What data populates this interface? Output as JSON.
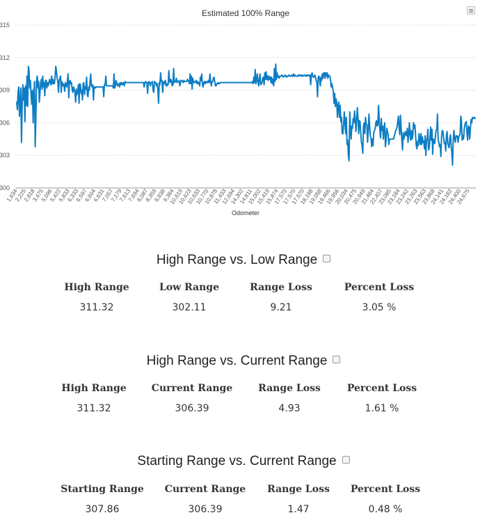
{
  "chart_data": {
    "type": "line",
    "title": "Estimated 100% Range",
    "xlabel": "Odometer",
    "ylabel": "",
    "ylim": [
      300,
      315
    ],
    "yticks": [
      300,
      303,
      306,
      309,
      312,
      315
    ],
    "xticks": [
      "1,634",
      "2,225",
      "2,818",
      "3,475",
      "5,096",
      "5,422",
      "5,833",
      "6,333",
      "6,597",
      "6,604",
      "6,631",
      "7,057",
      "7,179",
      "7,613",
      "7,694",
      "8,087",
      "8,359",
      "8,838",
      "9,384",
      "10,619",
      "10,623",
      "10,633",
      "10,770",
      "10,878",
      "11,433",
      "12,694",
      "14,302",
      "14,811",
      "15,002",
      "15,419",
      "15,874",
      "17,570",
      "17,570",
      "17,570",
      "18,188",
      "19,058",
      "19,466",
      "19,956",
      "20,034",
      "20,475",
      "20,949",
      "21,484",
      "22,407",
      "23,085",
      "23,184",
      "23,242",
      "23,263",
      "23,563",
      "23,868",
      "24,141",
      "24,182",
      "24,400",
      "24,675"
    ],
    "grid": true,
    "series": [
      {
        "color": "#0d7dc4",
        "values": [
          307.9,
          307.2,
          308.8,
          309.3,
          306.6,
          307.8,
          309.2,
          304.2,
          307.6,
          309.5,
          308.1,
          309.2,
          306.1,
          309.4,
          307.6,
          310.3,
          307.5,
          311.2,
          310.8,
          309.2,
          309.9,
          308.5,
          307.7,
          309.0,
          306.0,
          308.6,
          309.8,
          303.8,
          306.5,
          309.9,
          310.3,
          309.2,
          309.8,
          307.9,
          308.8,
          309.7,
          310.0,
          309.1,
          310.3,
          309.3,
          309.7,
          308.5,
          309.9,
          309.9,
          309.2,
          309.7,
          309.4,
          309.7,
          310.0,
          309.7,
          309.5,
          310.3,
          309.6,
          310.0,
          309.6,
          309.6,
          310.2,
          311.2,
          310.8,
          310.1,
          309.8,
          308.8,
          309.9,
          310.1,
          310.3,
          308.8,
          309.8,
          309.4,
          309.6,
          309.5,
          308.9,
          309.7,
          309.4,
          309.3,
          309.9,
          310.5,
          308.3,
          309.8,
          309.9,
          309.6,
          309.7,
          309.0,
          308.8,
          309.3,
          309.1,
          308.8,
          307.9,
          309.1,
          308.6,
          308.9,
          309.5,
          307.8,
          309.6,
          309.5,
          308.7,
          309.0,
          308.1,
          309.6,
          309.7,
          308.6,
          309.3,
          309.1,
          310.2,
          308.6,
          308.4,
          309.3,
          309.0,
          309.8,
          310.5,
          309.4,
          309.3,
          309.5,
          308.1,
          309.3,
          309.3,
          309.2,
          309.3,
          309.3,
          309.3,
          309.3,
          309.3,
          309.3,
          309.3,
          309.3,
          309.3,
          309.3,
          309.3,
          308.4,
          309.5,
          309.5,
          310.3,
          309.4,
          309.4,
          309.4,
          309.4,
          309.4,
          309.4,
          309.4,
          309.4,
          309.4,
          309.4,
          309.2,
          310.5,
          309.2,
          309.4,
          309.9,
          309.7,
          309.4,
          309.5,
          309.6,
          309.3,
          309.7,
          309.5,
          309.7,
          309.5,
          309.6,
          309.7,
          309.4,
          309.8,
          309.7,
          309.7,
          309.7,
          309.7,
          309.7,
          309.7,
          309.7,
          309.7,
          309.7,
          309.7,
          309.7,
          309.7,
          309.7,
          309.7,
          309.7,
          309.7,
          309.7,
          309.7,
          309.7,
          309.7,
          309.7,
          309.7,
          309.7,
          309.7,
          309.7,
          309.7,
          309.7,
          309.3,
          309.7,
          309.8,
          309.7,
          309.7,
          308.7,
          309.7,
          309.8,
          309.7,
          309.4,
          309.7,
          309.7,
          309.8,
          309.0,
          308.8,
          309.8,
          309.7,
          309.7,
          309.4,
          309.6,
          309.1,
          307.8,
          309.7,
          309.5,
          310.6,
          309.8,
          309.9,
          308.8,
          309.7,
          309.8,
          309.6,
          309.9,
          309.4,
          309.4,
          309.6,
          309.5,
          310.8,
          309.9,
          309.7,
          310.0,
          309.8,
          309.4,
          309.5,
          311.0,
          309.7,
          309.8,
          309.8,
          310.1,
          309.7,
          309.8,
          309.8,
          309.9,
          309.4,
          309.7,
          309.9,
          309.9,
          309.8,
          309.7,
          309.9,
          309.8,
          309.8,
          309.8,
          309.8,
          310.0,
          309.9,
          309.8,
          309.6,
          310.5,
          309.6,
          310.3,
          309.1,
          310.1,
          309.7,
          309.8,
          309.7,
          309.8,
          309.9,
          309.6,
          309.8,
          309.6,
          309.7,
          309.4,
          310.2,
          309.9,
          310.5,
          309.5,
          309.3,
          309.7,
          309.8,
          309.6,
          309.8,
          309.7,
          309.8,
          309.7,
          309.9,
          309.7,
          310.5,
          309.8,
          309.4,
          309.8,
          309.8,
          310.1,
          310.2,
          309.8,
          309.4,
          309.4,
          309.6,
          309.6,
          309.7,
          309.6,
          309.6,
          309.7,
          309.7,
          309.7,
          309.7,
          309.7,
          309.7,
          309.7,
          309.7,
          309.7,
          309.7,
          309.7,
          309.7,
          309.7,
          309.7,
          309.7,
          309.7,
          309.7,
          309.7,
          309.7,
          309.7,
          309.7,
          309.7,
          309.7,
          309.7,
          309.7,
          309.7,
          309.7,
          309.7,
          309.7,
          309.7,
          309.7,
          309.7,
          309.7,
          309.7,
          309.7,
          309.7,
          309.7,
          309.7,
          309.7,
          309.7,
          309.7,
          309.7,
          309.7,
          309.7,
          309.7,
          309.7,
          309.7,
          309.8,
          309.6,
          310.2,
          309.7,
          310.9,
          309.6,
          309.9,
          310.5,
          309.8,
          309.4,
          310.0,
          310.5,
          309.5,
          309.6,
          309.7,
          310.1,
          310.2,
          309.5,
          310.6,
          310.0,
          310.7,
          310.0,
          310.3,
          309.9,
          310.3,
          310.0,
          310.2,
          309.7,
          310.2,
          309.6,
          310.0,
          309.4,
          311.0,
          309.8,
          311.4,
          310.0,
          310.6,
          310.2,
          310.3,
          310.1,
          310.3,
          310.3,
          310.3,
          310.4,
          310.3,
          310.2,
          310.3,
          310.3,
          310.4,
          310.3,
          310.2,
          310.3,
          310.3,
          310.4,
          310.3,
          310.3,
          310.3,
          310.4,
          310.3,
          310.3,
          310.5,
          310.3,
          310.4,
          310.3,
          310.3,
          310.3,
          310.3,
          310.4,
          310.3,
          310.4,
          310.4,
          310.3,
          310.4,
          310.3,
          310.3,
          310.4,
          310.4,
          310.3,
          310.3,
          310.4,
          310.3,
          310.4,
          310.4,
          310.3,
          310.4,
          309.5,
          310.4,
          310.6,
          310.3,
          310.2,
          310.2,
          310.4,
          310.2,
          309.9,
          309.7,
          308.4,
          310.2,
          310.3,
          310.0,
          309.4,
          310.2,
          309.9,
          310.5,
          310.1,
          310.6,
          310.6,
          310.1,
          310.6,
          310.3,
          310.6,
          310.1,
          310.4,
          310.3,
          310.3,
          309.9,
          309.3,
          309.6,
          309.2,
          308.9,
          307.8,
          308.7,
          307.5,
          308.2,
          307.9,
          306.5,
          307.5,
          307.9,
          306.5,
          307.6,
          306.1,
          306.5,
          305.0,
          305.0,
          305.8,
          307.0,
          306.1,
          305.0,
          306.5,
          304.0,
          304.4,
          303.0,
          302.5,
          307.0,
          305.5,
          304.5,
          305.7,
          305.5,
          306.4,
          306.0,
          307.1,
          306.3,
          305.2,
          306.2,
          307.4,
          306.5,
          305.0,
          306.2,
          306.1,
          305.1,
          304.2,
          303.9,
          303.2,
          305.7,
          306.0,
          305.0,
          306.5,
          305.9,
          305.8,
          304.2,
          305.2,
          306.8,
          305.7,
          304.8,
          304.6,
          303.8,
          304.5,
          303.9,
          305.1,
          305.3,
          305.4,
          306.0,
          306.2,
          305.7,
          305.8,
          307.6,
          306.3,
          305.3,
          304.6,
          306.4,
          305.3,
          305.7,
          304.5,
          305.5,
          306.0,
          303.8,
          304.3,
          305.5,
          305.2,
          304.9,
          304.0,
          304.5,
          304.5,
          304.5,
          304.5,
          304.5,
          304.5,
          304.5,
          304.8,
          305.0,
          305.3,
          305.4,
          305.6,
          306.1,
          306.6,
          305.6,
          304.9,
          306.7,
          305.5,
          304.4,
          303.5,
          305.1,
          304.5,
          304.8,
          305.2,
          304.9,
          304.8,
          305.5,
          304.2,
          304.9,
          306.0,
          305.0,
          304.4,
          305.3,
          304.5,
          304.8,
          306.0,
          305.5,
          305.8,
          304.9,
          303.9,
          303.6,
          304.3,
          303.9,
          305.0,
          304.5,
          304.0,
          305.0,
          304.0,
          304.7,
          304.2,
          304.3,
          303.6,
          304.8,
          303.0,
          304.3,
          304.6,
          305.4,
          303.5,
          303.7,
          304.5,
          305.6,
          304.4,
          305.4,
          303.1,
          304.5,
          304.2,
          304.1,
          304.8,
          305.3,
          305.4,
          306.8,
          304.4,
          304.2,
          303.8,
          304.0,
          302.9,
          304.8,
          305.3,
          305.2,
          304.6,
          304.1,
          304.2,
          303.4,
          304.8,
          305.2,
          304.1,
          303.9,
          303.7,
          304.6,
          304.9,
          303.9,
          303.2,
          302.1,
          304.5,
          305.3,
          304.5,
          304.2,
          304.8,
          304.7,
          304.8,
          304.2,
          304.7,
          304.8,
          305.0,
          306.6,
          306.1,
          304.4,
          304.8,
          304.5,
          305.4,
          305.8,
          306.0,
          306.1,
          305.1,
          304.4,
          305.7,
          305.6,
          304.5,
          305.4,
          306.3,
          306.0,
          306.5,
          306.4,
          306.4,
          306.5,
          306.4
        ]
      }
    ]
  },
  "sections": [
    {
      "title": "High Range vs. Low Range",
      "headers": [
        "High Range",
        "Low Range",
        "Range Loss",
        "Percent Loss"
      ],
      "values": [
        "311.32",
        "302.11",
        "9.21",
        "3.05 %"
      ]
    },
    {
      "title": "High Range vs. Current Range",
      "headers": [
        "High Range",
        "Current Range",
        "Range Loss",
        "Percent Loss"
      ],
      "values": [
        "311.32",
        "306.39",
        "4.93",
        "1.61 %"
      ]
    },
    {
      "title": "Starting Range vs. Current Range",
      "headers": [
        "Starting Range",
        "Current Range",
        "Range Loss",
        "Percent Loss"
      ],
      "values": [
        "307.86",
        "306.39",
        "1.47",
        "0.48 %"
      ]
    }
  ]
}
